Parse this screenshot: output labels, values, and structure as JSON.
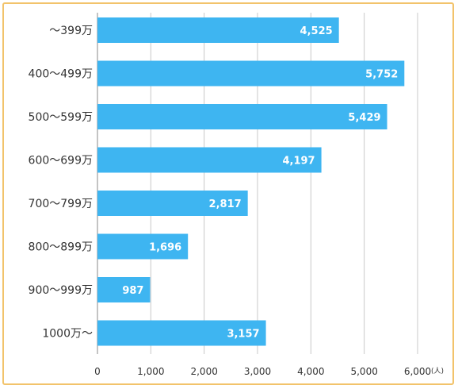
{
  "chart_data": {
    "type": "bar",
    "orientation": "horizontal",
    "categories": [
      "～399万",
      "400～499万",
      "500～599万",
      "600～699万",
      "700～799万",
      "800～899万",
      "900～999万",
      "1000万～"
    ],
    "values": [
      4525,
      5752,
      5429,
      4197,
      2817,
      1696,
      987,
      3157
    ],
    "value_labels": [
      "4,525",
      "5,752",
      "5,429",
      "4,197",
      "2,817",
      "1,696",
      "987",
      "3,157"
    ],
    "x_ticks": [
      0,
      1000,
      2000,
      3000,
      4000,
      5000,
      6000
    ],
    "x_tick_labels": [
      "0",
      "1,000",
      "2,000",
      "3,000",
      "4,000",
      "5,000",
      "6,000"
    ],
    "x_unit": "(人)",
    "xlim": [
      0,
      6000
    ],
    "title": "",
    "xlabel": "",
    "ylabel": "",
    "grid": true,
    "bar_color": "#3eb5f1",
    "grid_color": "#c8c8c8",
    "border_color": "#f2c36b"
  }
}
